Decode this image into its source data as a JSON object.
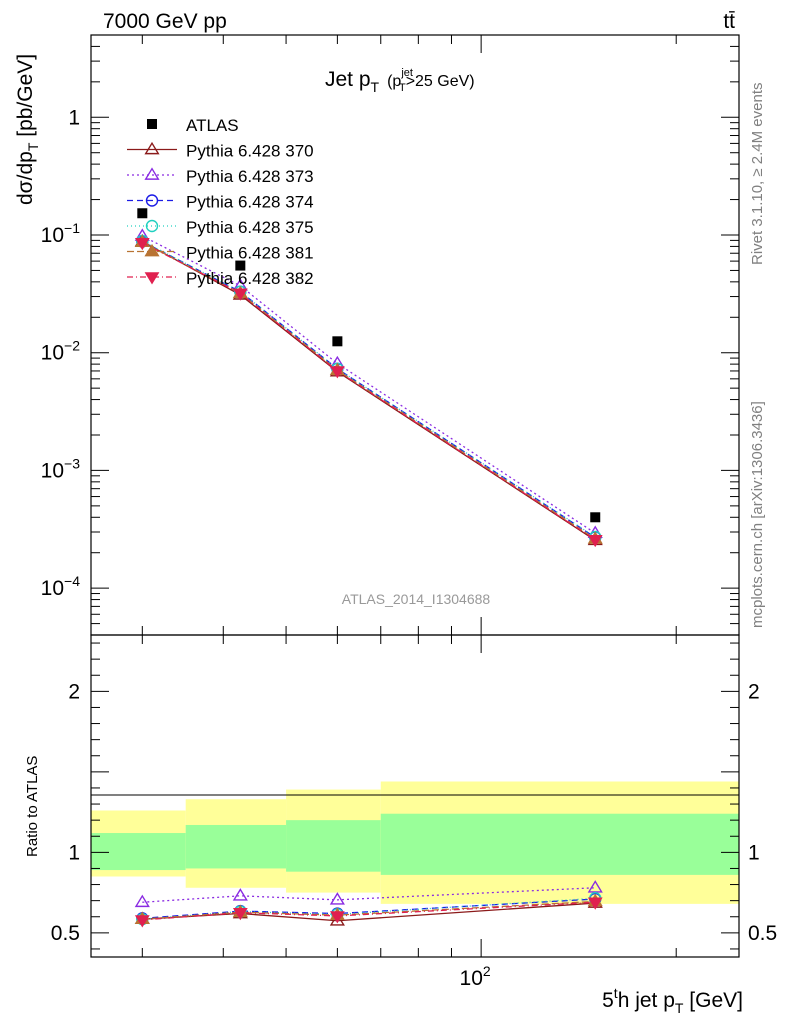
{
  "header": {
    "energy_label": "7000 GeV pp",
    "process_label": "tt̄"
  },
  "side_labels": {
    "rivet": "Rivet 3.1.10, ≥ 2.4M events",
    "mcplots": "mcplots.cern.ch [arXiv:1306.3436]"
  },
  "analysis_label": "ATLAS_2014_I1304688",
  "colors": {
    "data": "#000000",
    "p370": "#8b1a1a",
    "p373": "#8a2be2",
    "p374": "#1c1ce6",
    "p375": "#20d0c0",
    "p381": "#b87333",
    "p382": "#e0204f",
    "band_inner": "#99ff99",
    "band_outer": "#ffff99",
    "analysis_label": "#999999",
    "side_label": "#808080"
  },
  "chart_data": {
    "type": "line",
    "title": "Jet p",
    "title_parts": {
      "main": "Jet p",
      "main_sub": "T",
      "cut_pre": "(p",
      "cut_sup": "jet",
      "cut_sub": "T",
      "cut_post": ">25 GeV)"
    },
    "xlabel": "5",
    "xlabel_parts": {
      "pre": "5",
      "sup": "t",
      "mid": "h jet p",
      "sub": "T",
      "post": " [GeV]"
    },
    "ylabel": "dσ/dp",
    "ylabel_parts": {
      "main": "dσ/dp",
      "sub": "T",
      "post": "  [pb/GeV]"
    },
    "ratio_ylabel": "Ratio to ATLAS",
    "x_scale": "log",
    "y_scale": "log",
    "xlim": [
      25,
      250
    ],
    "ylim": [
      4e-05,
      5
    ],
    "ratio_ylim": [
      0.35,
      2.35
    ],
    "x_tick_labels": [
      {
        "value": 100,
        "base": "10",
        "exp": "2"
      }
    ],
    "y_tick_labels": [
      {
        "value": 1,
        "text": "1"
      },
      {
        "value": 0.1,
        "base": "10",
        "exp": "−1"
      },
      {
        "value": 0.01,
        "base": "10",
        "exp": "−2"
      },
      {
        "value": 0.001,
        "base": "10",
        "exp": "−3"
      },
      {
        "value": 0.0001,
        "base": "10",
        "exp": "−4"
      }
    ],
    "ratio_tick_labels": [
      {
        "value": 2,
        "text": "2"
      },
      {
        "value": 1,
        "text": "1"
      },
      {
        "value": 0.5,
        "text": "0.5"
      }
    ],
    "x": [
      30,
      42.5,
      60,
      150
    ],
    "data": {
      "name": "ATLAS",
      "values": [
        0.153,
        0.055,
        0.0125,
        0.0004
      ],
      "bins": [
        [
          25,
          35
        ],
        [
          35,
          50
        ],
        [
          50,
          70
        ],
        [
          70,
          250
        ]
      ],
      "stat_band": [
        [
          0.89,
          1.12
        ],
        [
          0.9,
          1.17
        ],
        [
          0.88,
          1.2
        ],
        [
          0.86,
          1.24
        ]
      ],
      "total_band": [
        [
          0.85,
          1.26
        ],
        [
          0.78,
          1.33
        ],
        [
          0.75,
          1.39
        ],
        [
          0.68,
          1.44
        ]
      ]
    },
    "series": [
      {
        "name": "Pythia 6.428 370",
        "key": "p370",
        "marker": "tri-up-open",
        "dash": "",
        "values": [
          0.088,
          0.031,
          0.0069,
          0.000255
        ],
        "ratio": [
          0.585,
          0.62,
          0.575,
          0.685
        ]
      },
      {
        "name": "Pythia 6.428 373",
        "key": "p373",
        "marker": "tri-up-open",
        "dash": "2,3",
        "values": [
          0.098,
          0.037,
          0.0081,
          0.000293
        ],
        "ratio": [
          0.69,
          0.73,
          0.705,
          0.78
        ]
      },
      {
        "name": "Pythia 6.428 374",
        "key": "p374",
        "marker": "circle-open",
        "dash": "6,4",
        "values": [
          0.088,
          0.033,
          0.0073,
          0.00027
        ],
        "ratio": [
          0.59,
          0.635,
          0.62,
          0.71
        ]
      },
      {
        "name": "Pythia 6.428 375",
        "key": "p375",
        "marker": "circle-open",
        "dash": "1,3",
        "values": [
          0.089,
          0.033,
          0.0073,
          0.000272
        ],
        "ratio": [
          0.585,
          0.632,
          0.615,
          0.715
        ]
      },
      {
        "name": "Pythia 6.428 381",
        "key": "p381",
        "marker": "tri-up-filled",
        "dash": "7,3",
        "values": [
          0.087,
          0.032,
          0.0071,
          0.000262
        ],
        "ratio": [
          0.585,
          0.628,
          0.61,
          0.695
        ]
      },
      {
        "name": "Pythia 6.428 382",
        "key": "p382",
        "marker": "tri-down-filled",
        "dash": "6,3,1,3",
        "values": [
          0.086,
          0.032,
          0.007,
          0.000258
        ],
        "ratio": [
          0.58,
          0.625,
          0.605,
          0.69
        ]
      }
    ],
    "legend_placement": "top-left",
    "grid": false
  }
}
